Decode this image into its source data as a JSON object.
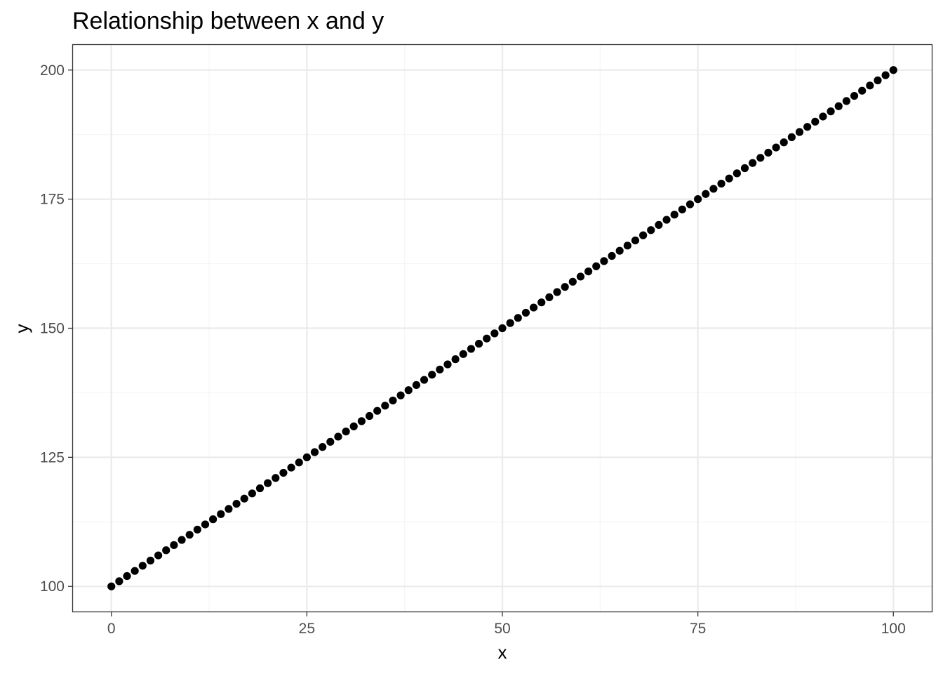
{
  "chart_data": {
    "type": "scatter",
    "title": "Relationship between x and y",
    "xlabel": "x",
    "ylabel": "y",
    "xlim": [
      -5,
      105
    ],
    "ylim": [
      95,
      205
    ],
    "xticks": [
      0,
      25,
      50,
      75,
      100
    ],
    "yticks": [
      100,
      125,
      150,
      175,
      200
    ],
    "xtick_labels": [
      "0",
      "25",
      "50",
      "75",
      "100"
    ],
    "ytick_labels": [
      "100",
      "125",
      "150",
      "175",
      "200"
    ],
    "x_minor_ticks": [
      12.5,
      37.5,
      62.5,
      87.5
    ],
    "y_minor_ticks": [
      112.5,
      137.5,
      162.5,
      187.5
    ],
    "grid": true,
    "legend": "none",
    "colors": {
      "point": "#000000",
      "grid_major": "#ebebeb",
      "grid_minor": "#f5f5f5",
      "panel_border": "#333333",
      "tick_label": "#4d4d4d"
    },
    "series": [
      {
        "x": [
          0,
          1,
          2,
          3,
          4,
          5,
          6,
          7,
          8,
          9,
          10,
          11,
          12,
          13,
          14,
          15,
          16,
          17,
          18,
          19,
          20,
          21,
          22,
          23,
          24,
          25,
          26,
          27,
          28,
          29,
          30,
          31,
          32,
          33,
          34,
          35,
          36,
          37,
          38,
          39,
          40,
          41,
          42,
          43,
          44,
          45,
          46,
          47,
          48,
          49,
          50,
          51,
          52,
          53,
          54,
          55,
          56,
          57,
          58,
          59,
          60,
          61,
          62,
          63,
          64,
          65,
          66,
          67,
          68,
          69,
          70,
          71,
          72,
          73,
          74,
          75,
          76,
          77,
          78,
          79,
          80,
          81,
          82,
          83,
          84,
          85,
          86,
          87,
          88,
          89,
          90,
          91,
          92,
          93,
          94,
          95,
          96,
          97,
          98,
          99,
          100
        ],
        "y": [
          100,
          101,
          102,
          103,
          104,
          105,
          106,
          107,
          108,
          109,
          110,
          111,
          112,
          113,
          114,
          115,
          116,
          117,
          118,
          119,
          120,
          121,
          122,
          123,
          124,
          125,
          126,
          127,
          128,
          129,
          130,
          131,
          132,
          133,
          134,
          135,
          136,
          137,
          138,
          139,
          140,
          141,
          142,
          143,
          144,
          145,
          146,
          147,
          148,
          149,
          150,
          151,
          152,
          153,
          154,
          155,
          156,
          157,
          158,
          159,
          160,
          161,
          162,
          163,
          164,
          165,
          166,
          167,
          168,
          169,
          170,
          171,
          172,
          173,
          174,
          175,
          176,
          177,
          178,
          179,
          180,
          181,
          182,
          183,
          184,
          185,
          186,
          187,
          188,
          189,
          190,
          191,
          192,
          193,
          194,
          195,
          196,
          197,
          198,
          199,
          200
        ]
      }
    ]
  }
}
